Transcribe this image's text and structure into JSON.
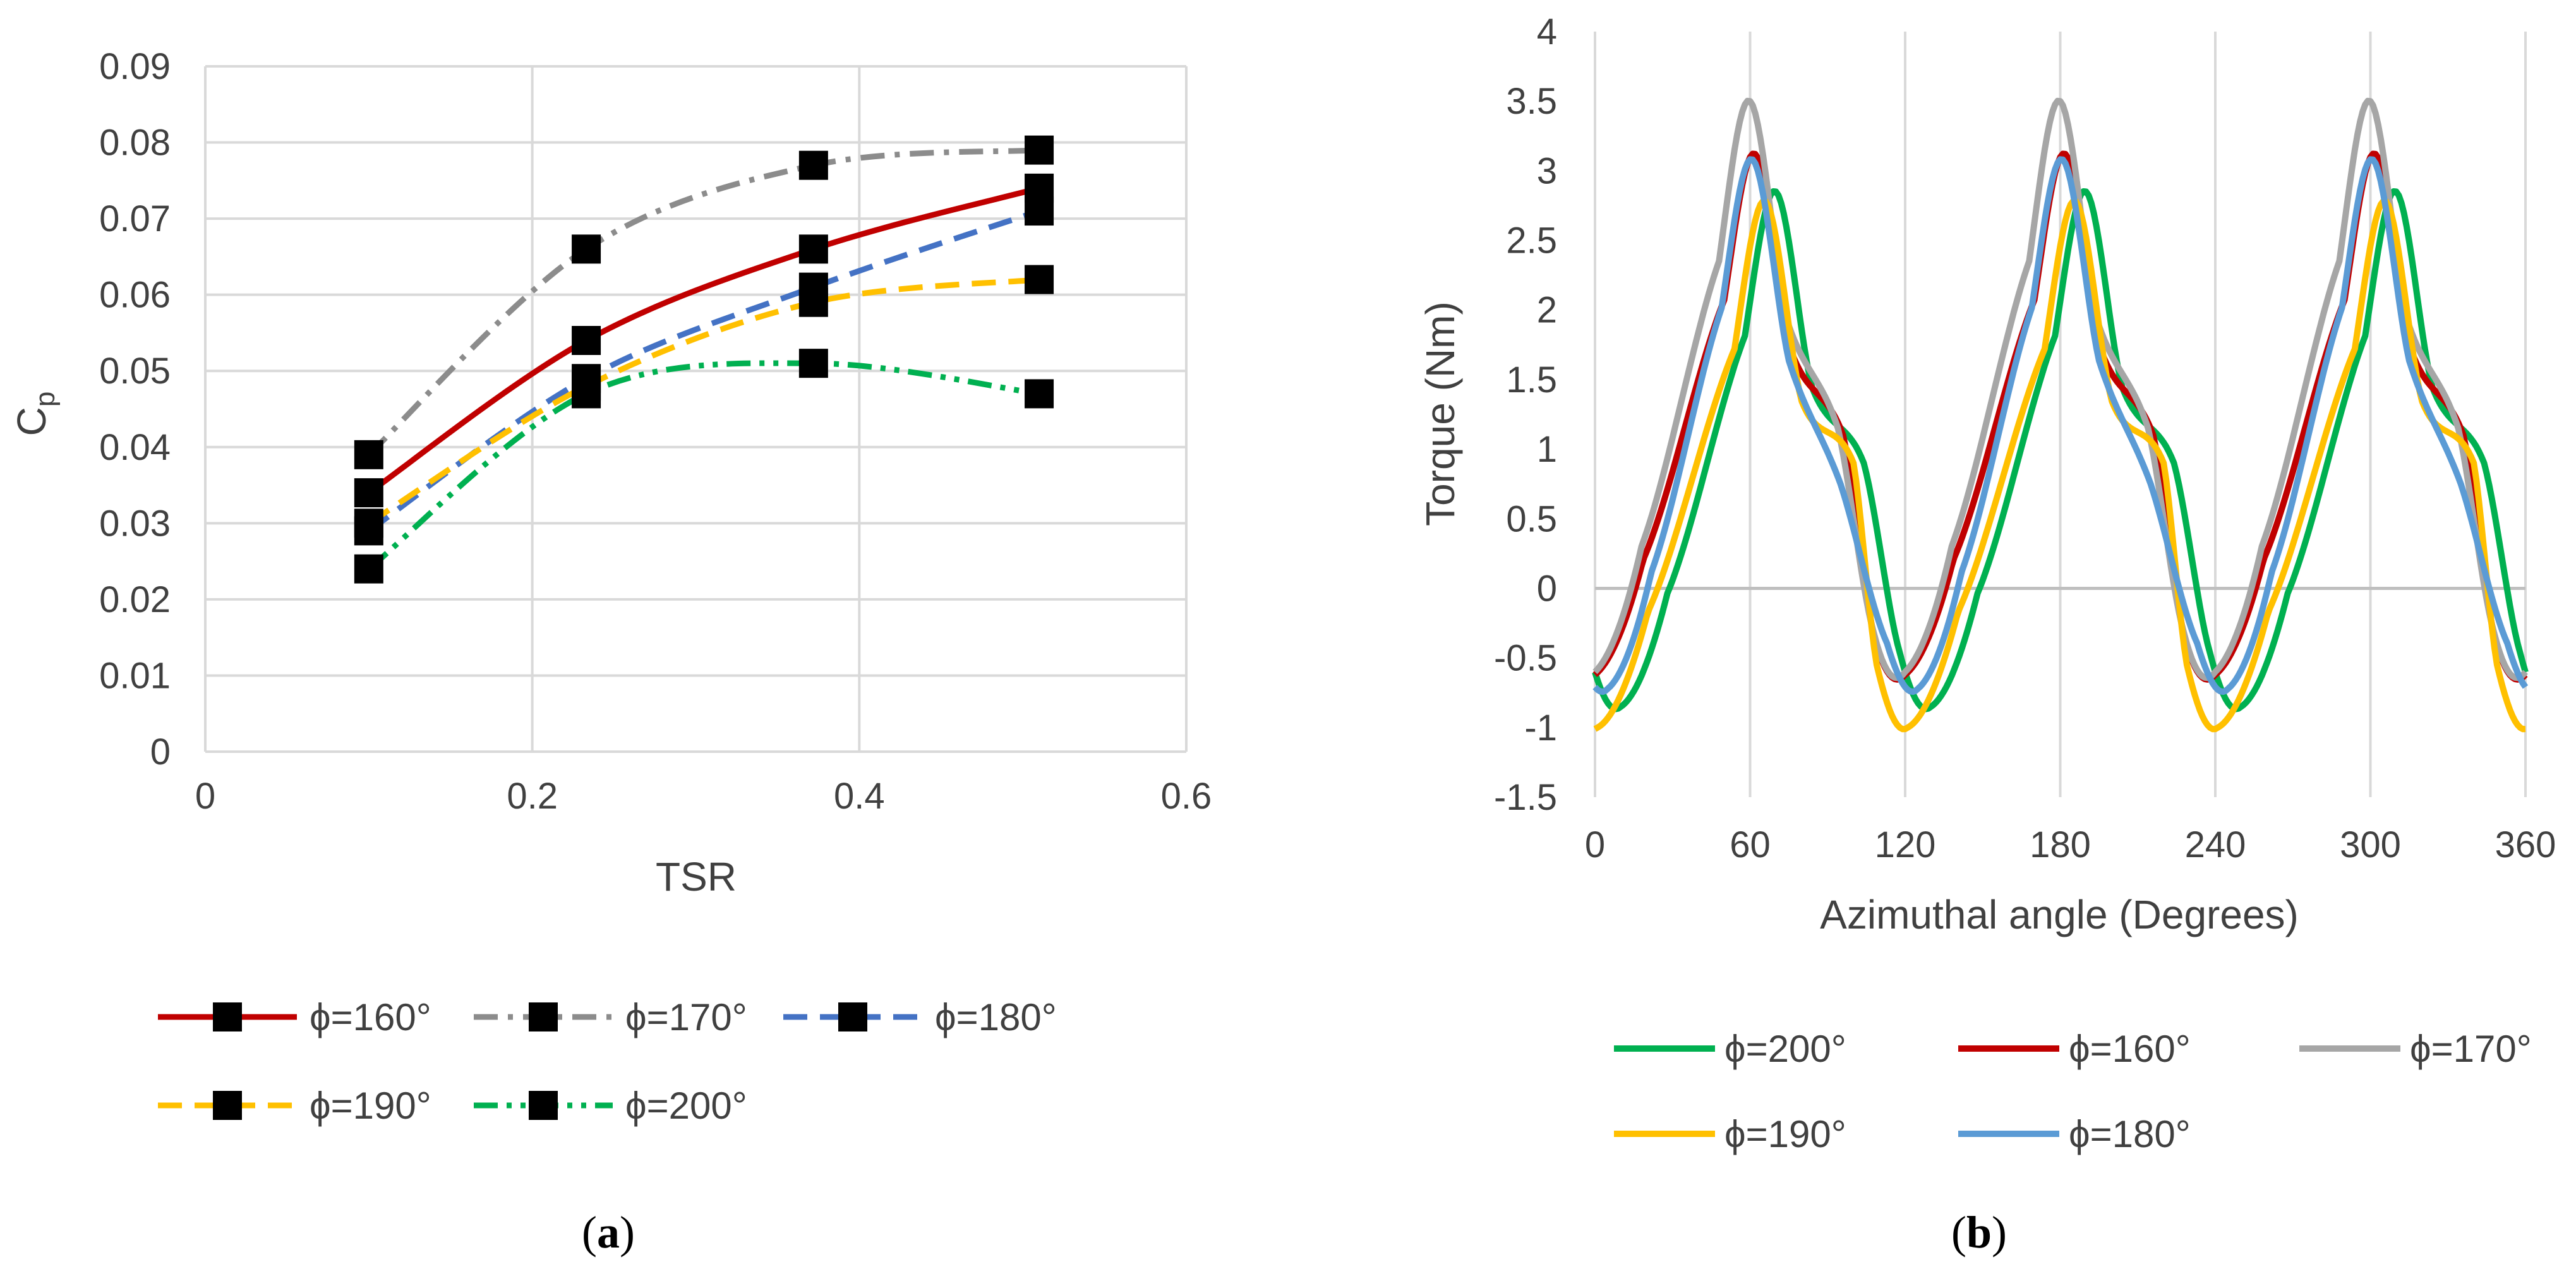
{
  "charts": {
    "a": {
      "caption": "(a)",
      "caption_letter": "a",
      "chart_data": {
        "type": "scatter",
        "title": "",
        "xlabel": "TSR",
        "ylabel_main": "C",
        "ylabel_sub": "p",
        "xlim": [
          0,
          0.6
        ],
        "ylim": [
          0,
          0.09
        ],
        "xticks": [
          "0",
          "0.2",
          "0.4",
          "0.6"
        ],
        "yticks": [
          "0",
          "0.01",
          "0.02",
          "0.03",
          "0.04",
          "0.05",
          "0.06",
          "0.07",
          "0.08",
          "0.09"
        ],
        "grid": true,
        "legend_position": "bottom",
        "x": [
          0.1,
          0.233,
          0.372,
          0.51
        ],
        "series": [
          {
            "name": "ϕ=160°",
            "color": "#C00000",
            "dash": "solid",
            "values": [
              0.034,
              0.054,
              0.066,
              0.074
            ]
          },
          {
            "name": "ϕ=170°",
            "color": "#8C8C8C",
            "dash": "dashdot",
            "values": [
              0.039,
              0.066,
              0.077,
              0.079
            ]
          },
          {
            "name": "ϕ=180°",
            "color": "#4472C4",
            "dash": "dash",
            "values": [
              0.029,
              0.049,
              0.061,
              0.071
            ]
          },
          {
            "name": "ϕ=190°",
            "color": "#FFC000",
            "dash": "dash",
            "values": [
              0.03,
              0.048,
              0.059,
              0.062
            ]
          },
          {
            "name": "ϕ=200°",
            "color": "#00B050",
            "dash": "dashdotdot",
            "values": [
              0.024,
              0.047,
              0.051,
              0.047
            ]
          }
        ]
      }
    },
    "b": {
      "caption": "(b)",
      "caption_letter": "b",
      "chart_data": {
        "type": "line",
        "title": "",
        "xlabel": "Azimuthal angle (Degrees)",
        "ylabel": "Torque (Nm)",
        "xlim": [
          0,
          360
        ],
        "ylim": [
          -1.5,
          4
        ],
        "xticks": [
          "0",
          "60",
          "120",
          "180",
          "240",
          "300",
          "360"
        ],
        "yticks": [
          "-1.5",
          "-1",
          "-0.5",
          "0",
          "0.5",
          "1",
          "1.5",
          "2",
          "2.5",
          "3",
          "3.5",
          "4"
        ],
        "grid": true,
        "legend_position": "bottom",
        "period_deg": 120,
        "series": [
          {
            "name": "ϕ=200°",
            "color": "#00B050",
            "peak_angle": 70,
            "peak": 2.85,
            "trough_angle": 10,
            "trough": -0.85,
            "shoulder": 0
          },
          {
            "name": "ϕ=160°",
            "color": "#C00000",
            "peak_angle": 62,
            "peak": 3.12,
            "trough_angle": 0,
            "trough": -0.62,
            "shoulder": 0.2
          },
          {
            "name": "ϕ=170°",
            "color": "#A6A6A6",
            "peak_angle": 60,
            "peak": 3.5,
            "trough_angle": 0,
            "trough": -0.6,
            "shoulder": 0.25
          },
          {
            "name": "ϕ=190°",
            "color": "#FFC000",
            "peak_angle": 66,
            "peak": 2.78,
            "trough_angle": 1,
            "trough": -1.0,
            "shoulder": 0
          },
          {
            "name": "ϕ=180°",
            "color": "#5B9BD5",
            "peak_angle": 61,
            "peak": 3.08,
            "trough_angle": 5,
            "trough": -0.72,
            "shoulder": -0.15
          }
        ]
      }
    }
  }
}
